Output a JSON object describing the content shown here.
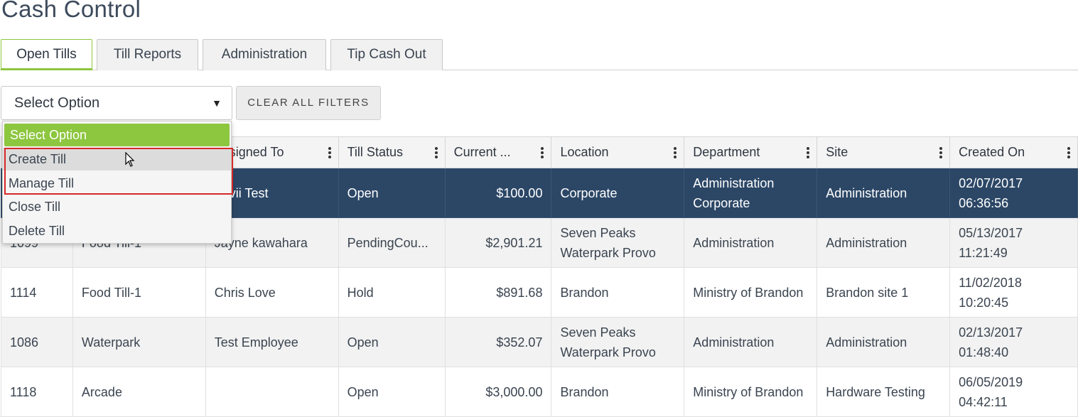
{
  "page": {
    "title": "Cash Control"
  },
  "tabs": [
    {
      "label": "Open Tills",
      "active": true
    },
    {
      "label": "Till Reports",
      "active": false
    },
    {
      "label": "Administration",
      "active": false
    },
    {
      "label": "Tip Cash Out",
      "active": false
    }
  ],
  "filters": {
    "select_value": "Select Option",
    "clear_label": "CLEAR ALL FILTERS"
  },
  "dropdown": {
    "header": "Select Option",
    "items": [
      "Create Till",
      "Manage Till",
      "Close Till",
      "Delete Till"
    ],
    "hovered": "Create Till",
    "highlighted": [
      "Create Till",
      "Manage Till"
    ]
  },
  "table": {
    "columns": [
      "",
      "",
      "Assigned To",
      "Till Status",
      "Current ...",
      "Location",
      "Department",
      "Site",
      "Created On"
    ],
    "rows": [
      {
        "id": "",
        "name": "",
        "assigned": "Yuvii Test",
        "status": "Open",
        "amount": "$100.00",
        "location": "Corporate",
        "department": "Administration Corporate",
        "site": "Administration",
        "created": "02/07/2017 06:36:56",
        "selected": true
      },
      {
        "id": "1099",
        "name": "Food Till-1",
        "assigned": "Jayne kawahara",
        "status": "PendingCou...",
        "amount": "$2,901.21",
        "location": "Seven Peaks Waterpark Provo",
        "department": "Administration",
        "site": "Administration",
        "created": "05/13/2017 11:21:49"
      },
      {
        "id": "1114",
        "name": "Food Till-1",
        "assigned": "Chris Love",
        "status": "Hold",
        "amount": "$891.68",
        "location": "Brandon",
        "department": "Ministry of Brandon",
        "site": "Brandon site 1",
        "created": "11/02/2018 10:20:45"
      },
      {
        "id": "1086",
        "name": "Waterpark",
        "assigned": "Test Employee",
        "status": "Open",
        "amount": "$352.07",
        "location": "Seven Peaks Waterpark Provo",
        "department": "Administration",
        "site": "Administration",
        "created": "02/13/2017 01:48:40"
      },
      {
        "id": "1118",
        "name": "Arcade",
        "assigned": "",
        "status": "Open",
        "amount": "$3,000.00",
        "location": "Brandon",
        "department": "Ministry of Brandon",
        "site": "Hardware Testing",
        "created": "06/05/2019 04:42:11"
      }
    ]
  },
  "colors": {
    "accent": "#8dc63f",
    "selected_row": "#2c4766",
    "highlight_border": "#d62828"
  }
}
